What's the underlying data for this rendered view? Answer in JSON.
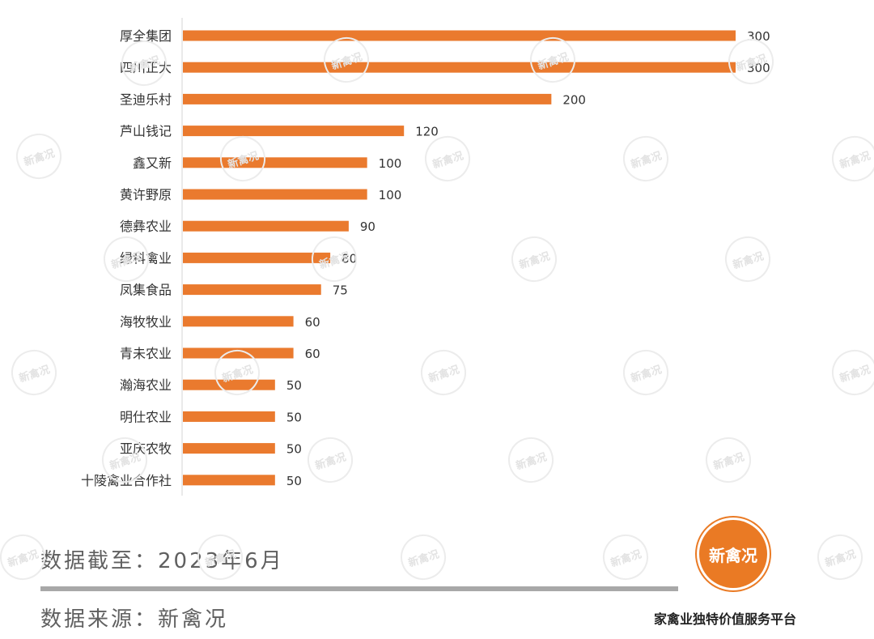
{
  "chart_data": {
    "type": "bar",
    "orientation": "horizontal",
    "categories": [
      "厚全集团",
      "四川正大",
      "圣迪乐村",
      "芦山钱记",
      "鑫又新",
      "黄许野原",
      "德彝农业",
      "绿科禽业",
      "凤集食品",
      "海牧牧业",
      "青未农业",
      "瀚海农业",
      "明仕农业",
      "亚庆农牧",
      "十陵禽业合作社"
    ],
    "values": [
      300,
      300,
      200,
      120,
      100,
      100,
      90,
      80,
      75,
      60,
      60,
      50,
      50,
      50,
      50
    ],
    "bar_color": "#ea7a2e",
    "xlim": [
      0,
      300
    ],
    "grid": false
  },
  "footer": {
    "date": "数据截至：2023年6月",
    "source": "数据来源：新禽况",
    "logo_text": "新禽况",
    "tagline": "家禽业独特价值服务平台"
  },
  "watermark_text": "新禽况",
  "colors": {
    "accent": "#ea7a24",
    "text": "#333333",
    "footer_text": "#606060"
  }
}
